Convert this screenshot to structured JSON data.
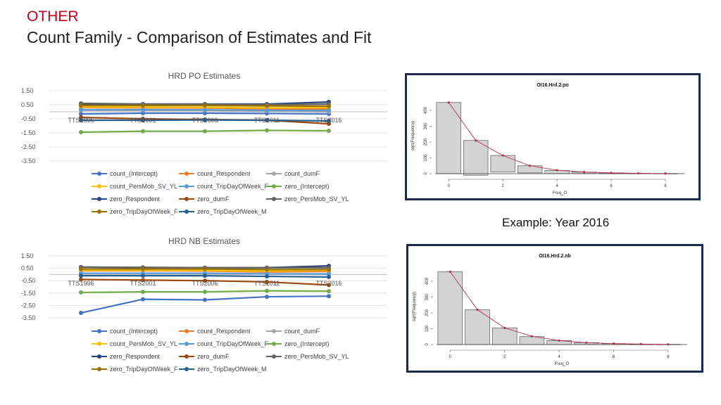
{
  "header": {
    "section": "OTHER",
    "title": "Count Family - Comparison of Estimates and Fit"
  },
  "example_note": "Example: Year 2016",
  "colors": {
    "section": "#c0001a",
    "frame": "#1b2a4e",
    "bar_fill": "#d3d3d3",
    "fit_line": "#b5304f"
  },
  "chart_data": [
    {
      "type": "line",
      "title": "HRD PO Estimates",
      "categories": [
        "TTS1996",
        "TTS2001",
        "TTS2006",
        "TTS2011",
        "TTS2016"
      ],
      "ylim": [
        -3.5,
        1.5
      ],
      "yticks": [
        "1.50",
        "0.50",
        "-0.50",
        "-1.50",
        "-2.50",
        "-3.50"
      ],
      "ytick_values": [
        1.5,
        0.5,
        -0.5,
        -1.5,
        -2.5,
        -3.5
      ],
      "grid": true,
      "legend": "bottom",
      "series": [
        {
          "name": "count_(Intercept)",
          "color": "#4472c4",
          "values": [
            -0.15,
            -0.1,
            -0.1,
            -0.12,
            -0.15
          ]
        },
        {
          "name": "count_Respondent",
          "color": "#ed7d31",
          "values": [
            0.3,
            0.28,
            0.27,
            0.2,
            0.2
          ]
        },
        {
          "name": "count_dumF",
          "color": "#a5a5a5",
          "values": [
            0.1,
            0.1,
            0.1,
            0.05,
            0.0
          ]
        },
        {
          "name": "count_PersMob_SV_YL",
          "color": "#ffc000",
          "values": [
            0.35,
            0.33,
            0.32,
            0.28,
            0.3
          ]
        },
        {
          "name": "count_TripDayOfWeek_F",
          "color": "#5b9bd5",
          "values": [
            0.15,
            0.15,
            0.14,
            0.1,
            0.1
          ]
        },
        {
          "name": "zero_(Intercept)",
          "color": "#70ad47",
          "values": [
            -1.45,
            -1.38,
            -1.38,
            -1.32,
            -1.35
          ]
        },
        {
          "name": "zero_Respondent",
          "color": "#264478",
          "values": [
            0.55,
            0.55,
            0.55,
            0.55,
            0.7
          ]
        },
        {
          "name": "zero_dumF",
          "color": "#9e480e",
          "values": [
            -0.4,
            -0.5,
            -0.55,
            -0.6,
            -0.85
          ]
        },
        {
          "name": "zero_PersMob_SV_YL",
          "color": "#636363",
          "values": [
            0.6,
            0.55,
            0.55,
            0.5,
            0.55
          ]
        },
        {
          "name": "zero_TripDayOfWeek_F",
          "color": "#997300",
          "values": [
            0.45,
            0.45,
            0.45,
            0.42,
            0.4
          ]
        },
        {
          "name": "zero_TripDayOfWeek_M",
          "color": "#255e91",
          "values": [
            -0.6,
            -0.6,
            -0.58,
            -0.6,
            -0.65
          ]
        }
      ]
    },
    {
      "type": "line",
      "title": "HRD NB Estimates",
      "categories": [
        "TTS1996",
        "TTS2001",
        "TTS2006",
        "TTS2011",
        "TTS2016"
      ],
      "ylim": [
        -3.5,
        1.5
      ],
      "yticks": [
        "1.50",
        "0.50",
        "-0.50",
        "-1.50",
        "-2.50",
        "-3.50"
      ],
      "ytick_values": [
        1.5,
        0.5,
        -0.5,
        -1.5,
        -2.5,
        -3.5
      ],
      "grid": true,
      "legend": "bottom",
      "series": [
        {
          "name": "count_(Intercept)",
          "color": "#4472c4",
          "values": [
            -3.1,
            -2.0,
            -2.05,
            -1.8,
            -1.75
          ]
        },
        {
          "name": "count_Respondent",
          "color": "#ed7d31",
          "values": [
            0.3,
            0.3,
            0.28,
            0.2,
            0.25
          ]
        },
        {
          "name": "count_dumF",
          "color": "#a5a5a5",
          "values": [
            0.1,
            0.1,
            0.1,
            0.05,
            0.0
          ]
        },
        {
          "name": "count_PersMob_SV_YL",
          "color": "#ffc000",
          "values": [
            0.35,
            0.35,
            0.33,
            0.28,
            0.35
          ]
        },
        {
          "name": "count_TripDayOfWeek_F",
          "color": "#5b9bd5",
          "values": [
            0.1,
            0.1,
            0.1,
            0.05,
            0.05
          ]
        },
        {
          "name": "zero_(Intercept)",
          "color": "#70ad47",
          "values": [
            -1.45,
            -1.4,
            -1.4,
            -1.32,
            -1.35
          ]
        },
        {
          "name": "zero_Respondent",
          "color": "#264478",
          "values": [
            0.6,
            0.55,
            0.55,
            0.55,
            0.7
          ]
        },
        {
          "name": "zero_dumF",
          "color": "#9e480e",
          "values": [
            -0.4,
            -0.45,
            -0.5,
            -0.6,
            -0.85
          ]
        },
        {
          "name": "zero_PersMob_SV_YL",
          "color": "#636363",
          "values": [
            0.6,
            0.58,
            0.55,
            0.55,
            0.55
          ]
        },
        {
          "name": "zero_TripDayOfWeek_F",
          "color": "#997300",
          "values": [
            0.45,
            0.45,
            0.45,
            0.4,
            0.4
          ]
        },
        {
          "name": "zero_TripDayOfWeek_M",
          "color": "#255e91",
          "values": [
            -0.1,
            -0.1,
            -0.1,
            -0.15,
            -0.2
          ]
        }
      ]
    },
    {
      "type": "bar",
      "title": "OI16.Hrd.2.po",
      "xlabel": "Freq_O",
      "ylabel": "sqrt(Frequency)",
      "x": [
        0,
        1,
        2,
        3,
        4,
        5,
        6,
        7,
        8
      ],
      "xticks": [
        0,
        2,
        4,
        6,
        8
      ],
      "yticks": [
        0,
        100,
        200,
        300,
        400
      ],
      "ylim": [
        0,
        480
      ],
      "bar_bottom": [
        0,
        -10,
        10,
        5,
        0,
        0,
        0,
        0,
        0
      ],
      "bar_top": [
        450,
        210,
        115,
        50,
        20,
        10,
        5,
        2,
        1
      ],
      "fit": [
        450,
        210,
        115,
        50,
        22,
        10,
        5,
        2,
        1
      ]
    },
    {
      "type": "bar",
      "title": "OI16.Hrd.2.nb",
      "xlabel": "Freq_O",
      "ylabel": "sqrt(Frequency)",
      "x": [
        0,
        1,
        2,
        3,
        4,
        5,
        6,
        7,
        8
      ],
      "xticks": [
        0,
        2,
        4,
        6,
        8
      ],
      "yticks": [
        0,
        100,
        200,
        300,
        400
      ],
      "ylim": [
        0,
        480
      ],
      "bar_bottom": [
        0,
        0,
        0,
        0,
        0,
        0,
        0,
        0,
        0
      ],
      "bar_top": [
        460,
        220,
        105,
        50,
        25,
        12,
        6,
        3,
        1
      ],
      "fit": [
        460,
        220,
        105,
        52,
        25,
        12,
        6,
        3,
        1
      ]
    }
  ]
}
